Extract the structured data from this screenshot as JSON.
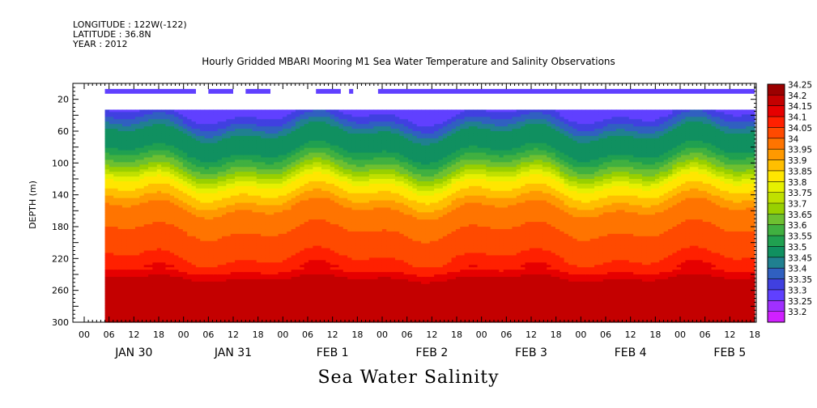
{
  "header": {
    "longitude": "LONGITUDE : 122W(-122)",
    "latitude": "LATITUDE : 36.8N",
    "year": "YEAR : 2012"
  },
  "chart_data": {
    "type": "heatmap",
    "title": "Hourly Gridded MBARI Mooring M1 Sea Water Temperature and Salinity Observations",
    "subtitle": "Sea Water Salinity",
    "ylabel": "DEPTH (m)",
    "xlabel": "",
    "y_axis": {
      "min": 0,
      "max": 300,
      "inverted": true,
      "tick_labels": [
        "20",
        "60",
        "100",
        "140",
        "180",
        "220",
        "260",
        "300"
      ]
    },
    "x_axis": {
      "hour_ticks": [
        "00",
        "06",
        "12",
        "18",
        "00",
        "06",
        "12",
        "18",
        "00",
        "06",
        "12",
        "18",
        "00",
        "06",
        "12",
        "18",
        "00",
        "06",
        "12",
        "18",
        "00",
        "06",
        "12",
        "18",
        "00",
        "06",
        "12",
        "18"
      ],
      "day_labels": [
        "JAN 30",
        "JAN 31",
        "FEB  1",
        "FEB  2",
        "FEB  3",
        "FEB  4",
        "FEB  5"
      ],
      "range_hours_from_jan30_00": [
        0,
        162
      ]
    },
    "colorbar": {
      "labels": [
        "34.25",
        "34.2",
        "34.15",
        "34.1",
        "34.05",
        "34",
        "33.95",
        "33.9",
        "33.85",
        "33.8",
        "33.75",
        "33.7",
        "33.65",
        "33.6",
        "33.55",
        "33.5",
        "33.45",
        "33.4",
        "33.35",
        "33.3",
        "33.25",
        "33.2"
      ],
      "colors": [
        "#9b0000",
        "#c40000",
        "#e60000",
        "#ff2000",
        "#ff4a00",
        "#ff7400",
        "#ff9900",
        "#ffbf00",
        "#ffe600",
        "#e6f000",
        "#c0e000",
        "#98d000",
        "#6ec030",
        "#40b040",
        "#20a050",
        "#109060",
        "#208090",
        "#3060c0",
        "#4040e0",
        "#6040ff",
        "#a030ff",
        "#d020ff"
      ]
    },
    "depth_profile": [
      {
        "depth": 35,
        "salinity": 33.33
      },
      {
        "depth": 50,
        "salinity": 33.42
      },
      {
        "depth": 65,
        "salinity": 33.53
      },
      {
        "depth": 85,
        "salinity": 33.55
      },
      {
        "depth": 105,
        "salinity": 33.68
      },
      {
        "depth": 125,
        "salinity": 33.85
      },
      {
        "depth": 140,
        "salinity": 33.92
      },
      {
        "depth": 160,
        "salinity": 34.02
      },
      {
        "depth": 200,
        "salinity": 34.07
      },
      {
        "depth": 230,
        "salinity": 34.12
      },
      {
        "depth": 250,
        "salinity": 34.24
      },
      {
        "depth": 270,
        "salinity": 34.22
      },
      {
        "depth": 300,
        "salinity": 34.2
      }
    ],
    "surface_sensor_depth": 10,
    "surface_sensor_salinity": 33.32,
    "surface_sensor_segments_hours": [
      [
        5,
        27
      ],
      [
        30,
        36
      ],
      [
        39,
        45
      ],
      [
        56,
        62
      ],
      [
        64,
        65
      ],
      [
        71,
        162
      ]
    ],
    "gridded_data_start_hour": 5
  }
}
